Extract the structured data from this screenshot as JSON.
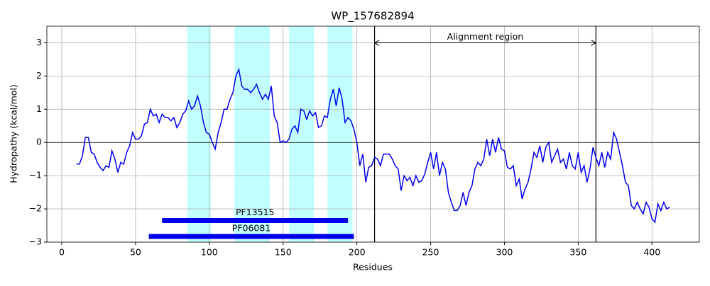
{
  "chart_data": {
    "type": "line",
    "title": "WP_157682894",
    "xlabel": "Residues",
    "ylabel": "Hydropathy (kcal/mol)",
    "color": "#0000ee",
    "x": [
      10,
      12,
      14,
      16,
      18,
      20,
      22,
      24,
      26,
      28,
      30,
      32,
      34,
      36,
      38,
      40,
      42,
      44,
      46,
      48,
      50,
      52,
      54,
      56,
      58,
      60,
      62,
      64,
      66,
      68,
      70,
      72,
      74,
      76,
      78,
      80,
      82,
      84,
      86,
      88,
      90,
      92,
      94,
      96,
      98,
      100,
      102,
      104,
      106,
      108,
      110,
      112,
      114,
      116,
      118,
      120,
      122,
      124,
      126,
      128,
      130,
      132,
      134,
      136,
      138,
      140,
      142,
      144,
      146,
      148,
      150,
      152,
      154,
      156,
      158,
      160,
      162,
      164,
      166,
      168,
      170,
      172,
      174,
      176,
      178,
      180,
      182,
      184,
      186,
      188,
      190,
      192,
      194,
      196,
      198,
      200,
      202,
      204,
      206,
      208,
      210,
      212,
      214,
      216,
      218,
      222,
      224,
      226,
      228,
      230,
      232,
      234,
      236,
      238,
      240,
      242,
      244,
      246,
      248,
      250,
      252,
      254,
      256,
      258,
      260,
      262,
      264,
      266,
      268,
      270,
      272,
      274,
      276,
      278,
      280,
      282,
      284,
      286,
      288,
      290,
      292,
      294,
      296,
      298,
      300,
      302,
      304,
      306,
      308,
      310,
      312,
      314,
      316,
      318,
      320,
      322,
      324,
      326,
      328,
      330,
      332,
      334,
      336,
      338,
      340,
      342,
      344,
      346,
      348,
      350,
      352,
      354,
      356,
      358,
      360,
      362,
      364,
      366,
      368,
      370,
      372,
      374,
      376,
      378,
      380,
      382,
      384,
      386,
      388,
      390,
      392,
      394,
      396,
      398,
      400,
      402,
      404,
      406,
      408,
      410,
      412
    ],
    "values": [
      -0.65,
      -0.65,
      -0.4,
      0.15,
      0.15,
      -0.3,
      -0.35,
      -0.6,
      -0.75,
      -0.85,
      -0.7,
      -0.75,
      -0.25,
      -0.5,
      -0.9,
      -0.6,
      -0.65,
      -0.3,
      -0.1,
      0.3,
      0.1,
      0.1,
      0.2,
      0.55,
      0.6,
      1.0,
      0.8,
      0.85,
      0.6,
      0.85,
      0.75,
      0.75,
      0.65,
      0.75,
      0.45,
      0.6,
      0.85,
      0.95,
      1.25,
      1.0,
      1.1,
      1.4,
      1.1,
      0.6,
      0.3,
      0.25,
      0.0,
      -0.2,
      0.3,
      0.6,
      1.0,
      1.0,
      1.3,
      1.5,
      2.0,
      2.2,
      1.7,
      1.6,
      1.6,
      1.5,
      1.6,
      1.75,
      1.5,
      1.3,
      1.45,
      1.3,
      1.7,
      0.8,
      0.6,
      0.0,
      0.05,
      0.0,
      0.1,
      0.4,
      0.5,
      0.3,
      1.0,
      0.95,
      0.7,
      0.95,
      0.8,
      0.9,
      0.45,
      0.5,
      0.8,
      0.75,
      1.3,
      1.6,
      1.1,
      1.65,
      1.3,
      0.6,
      0.75,
      0.65,
      0.4,
      0.0,
      -0.7,
      -0.35,
      -1.2,
      -0.75,
      -0.7,
      -0.45,
      -0.5,
      -0.7,
      -0.35,
      -0.35,
      -0.5,
      -0.7,
      -0.8,
      -1.45,
      -1.0,
      -1.15,
      -1.05,
      -1.3,
      -1.0,
      -1.2,
      -1.15,
      -0.95,
      -0.6,
      -0.3,
      -0.8,
      -0.3,
      -1.0,
      -0.6,
      -0.8,
      -1.5,
      -1.8,
      -2.05,
      -2.05,
      -1.9,
      -1.5,
      -1.9,
      -1.5,
      -1.3,
      -0.8,
      -0.6,
      -0.7,
      -0.5,
      0.1,
      -0.4,
      0.1,
      -0.3,
      0.15,
      -0.2,
      -0.25,
      -0.75,
      -0.8,
      -0.7,
      -1.3,
      -1.1,
      -1.7,
      -1.4,
      -1.2,
      -0.8,
      -0.3,
      -0.45,
      -0.1,
      -0.6,
      -0.15,
      0.0,
      -0.6,
      -0.4,
      -0.2,
      -0.6,
      -0.5,
      -0.8,
      -0.3,
      -0.7,
      -0.8,
      -0.3,
      -0.9,
      -0.7,
      -1.2,
      -0.8,
      -0.15,
      -0.45,
      -0.7,
      -0.3,
      -0.75,
      -0.3,
      -0.5,
      0.3,
      0.1,
      -0.3,
      -0.7,
      -1.2,
      -1.3,
      -1.9,
      -2.0,
      -1.8,
      -2.0,
      -2.15,
      -1.8,
      -1.95,
      -2.3,
      -2.4,
      -1.85,
      -2.05,
      -1.8,
      -2.0,
      -1.95
    ],
    "highlight_spans": [
      [
        85,
        101
      ],
      [
        117,
        141
      ],
      [
        154,
        171
      ],
      [
        180,
        197
      ]
    ],
    "span_color": "#c2ffff",
    "vlines": [
      212,
      362
    ],
    "hline": 0,
    "annotation": {
      "text": "Alignment region",
      "x": [
        212,
        362
      ],
      "y": 3
    },
    "domains": [
      {
        "label": "PF13515",
        "start": 68,
        "end": 194,
        "y": -2.35
      },
      {
        "label": "PF06081",
        "start": 59,
        "end": 198,
        "y": -2.83
      }
    ],
    "domain_color": "#0000ee",
    "xlim": [
      -10.1,
      432.1
    ],
    "ylim": [
      -3,
      3.5
    ],
    "xticks": [
      0,
      50,
      100,
      150,
      200,
      250,
      300,
      350,
      400
    ],
    "yticks": [
      {
        "value": -3,
        "label": "−3"
      },
      {
        "value": -2,
        "label": "−2"
      },
      {
        "value": -1,
        "label": "−1"
      },
      0,
      1,
      2,
      3
    ],
    "grid": true
  }
}
